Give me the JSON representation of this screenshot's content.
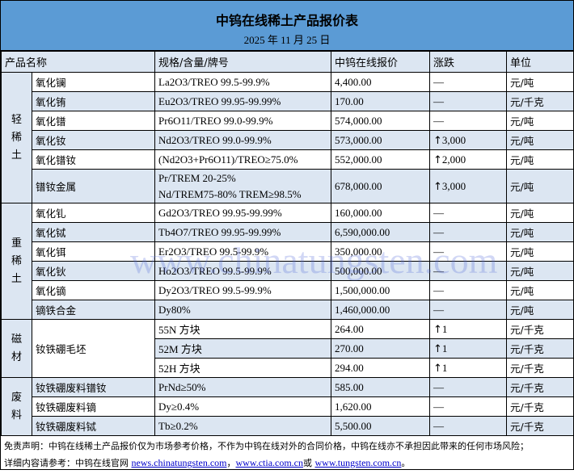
{
  "title": "中钨在线稀土产品报价表",
  "date": "2025 年 11 月 25 日",
  "headers": [
    "产品名称",
    "规格/含量/牌号",
    "中钨在线报价",
    "涨跌",
    "单位"
  ],
  "groups": [
    {
      "category": "轻稀土",
      "rows": [
        {
          "name": "氧化镧",
          "spec": "La2O3/TREO 99.5-99.9%",
          "price": "4,400.00",
          "change": "—",
          "unit": "元/吨"
        },
        {
          "name": "氧化铕",
          "spec": "Eu2O3/TREO 99.95-99.99%",
          "price": "170.00",
          "change": "—",
          "unit": "元/千克"
        },
        {
          "name": "氧化镨",
          "spec": "Pr6O11/TREO 99.0-99.9%",
          "price": "574,000.00",
          "change": "—",
          "unit": "元/吨"
        },
        {
          "name": "氧化钕",
          "spec": "Nd2O3/TREO 99.0-99.9%",
          "price": "573,000.00",
          "change": "3,000",
          "up": true,
          "unit": "元/吨"
        },
        {
          "name": "氧化镨钕",
          "spec": "(Nd2O3+Pr6O11)/TREO≥75.0%",
          "price": "552,000.00",
          "change": "2,000",
          "up": true,
          "unit": "元/吨"
        },
        {
          "name": "镨钕金属",
          "spec": "Pr/TREM 20-25%",
          "spec2": "Nd/TREM75-80% TREM≥98.5%",
          "price": "678,000.00",
          "change": "3,000",
          "up": true,
          "unit": "元/吨"
        }
      ]
    },
    {
      "category": "重稀土",
      "rows": [
        {
          "name": "氧化钆",
          "spec": "Gd2O3/TREO 99.95-99.99%",
          "price": "160,000.00",
          "change": "—",
          "unit": "元/吨"
        },
        {
          "name": "氧化铽",
          "spec": "Tb4O7/TREO 99.95-99.99%",
          "price": "6,590,000.00",
          "change": "—",
          "unit": "元/吨"
        },
        {
          "name": "氧化铒",
          "spec": "Er2O3/TREO 99.5-99.9%",
          "price": "350,000.00",
          "change": "—",
          "unit": "元/吨"
        },
        {
          "name": "氧化钬",
          "spec": "Ho2O3/TREO 99.5-99.9%",
          "price": "500,000.00",
          "change": "—",
          "unit": "元/吨"
        },
        {
          "name": "氧化镝",
          "spec": "Dy2O3/TREO 99.5-99.9%",
          "price": "1,500,000.00",
          "change": "—",
          "unit": "元/吨"
        },
        {
          "name": "镝铁合金",
          "spec": "Dy80%",
          "price": "1,460,000.00",
          "change": "—",
          "unit": "元/吨"
        }
      ]
    },
    {
      "category": "磁材",
      "product": "钕铁硼毛坯",
      "rows": [
        {
          "spec": "55N 方块",
          "price": "264.00",
          "change": "1",
          "up": true,
          "unit": "元/千克"
        },
        {
          "spec": "52M 方块",
          "price": "270.00",
          "change": "1",
          "up": true,
          "unit": "元/千克"
        },
        {
          "spec": "52H 方块",
          "price": "294.00",
          "change": "1",
          "up": true,
          "unit": "元/千克"
        }
      ]
    },
    {
      "category": "废料",
      "rows": [
        {
          "name": "钕铁硼废料镨钕",
          "spec": "PrNd≥50%",
          "price": "585.00",
          "change": "—",
          "unit": "元/千克"
        },
        {
          "name": "钕铁硼废料镝",
          "spec": "Dy≥0.4%",
          "price": "1,620.00",
          "change": "—",
          "unit": "元/千克"
        },
        {
          "name": "钕铁硼废料铽",
          "spec": "Tb≥0.2%",
          "price": "5,500.00",
          "change": "—",
          "unit": "元/千克"
        }
      ]
    }
  ],
  "footer": {
    "disclaimer": "免责声明：中钨在线稀土产品报价仅为市场参考价格，不作为中钨在线对外的合同价格，中钨在线亦不承担因此带来的任何市场风险；",
    "ref_prefix": "详细内容请参考：中钨在线官网 ",
    "link1": "news.chinatungsten.com",
    "sep1": "，",
    "link2": "www.ctia.com.cn",
    "sep2": "或 ",
    "link3": "www.tungsten.com.cn",
    "end": "。"
  },
  "watermark": "www.chinatungsten.com",
  "colors": {
    "header_bg": "#5b9bd5",
    "alt_row": "#dce6f2"
  }
}
